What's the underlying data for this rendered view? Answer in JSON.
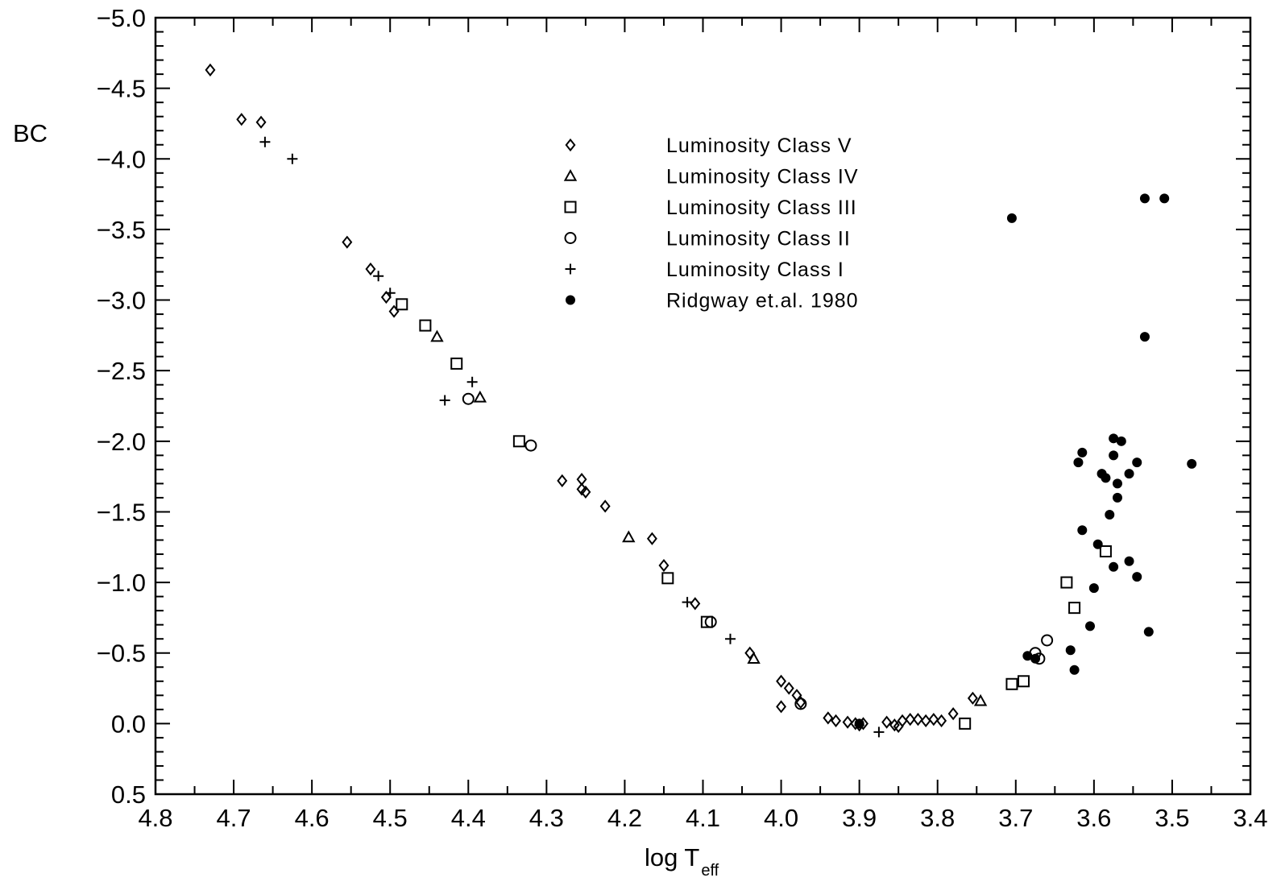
{
  "chart_data": {
    "type": "scatter",
    "title": "",
    "xlabel": "log T",
    "xlabel_subscript": "eff",
    "ylabel": "BC",
    "xlim": [
      4.8,
      3.4
    ],
    "ylim": [
      0.5,
      -5.0
    ],
    "x_ticks": [
      "4.8",
      "4.7",
      "4.6",
      "4.5",
      "4.4",
      "4.3",
      "4.2",
      "4.1",
      "4.0",
      "3.9",
      "3.8",
      "3.7",
      "3.6",
      "3.5",
      "3.4"
    ],
    "y_ticks": [
      "0.5",
      "0.0",
      "-0.5",
      "-1.0",
      "-1.5",
      "-2.0",
      "-2.5",
      "-3.0",
      "-3.5",
      "-4.0",
      "-4.5",
      "-5.0"
    ],
    "grid": false,
    "legend_position": "top-center",
    "series": [
      {
        "name": "Luminosity Class V",
        "marker": "diamond",
        "points": [
          [
            4.73,
            -4.63
          ],
          [
            4.69,
            -4.28
          ],
          [
            4.665,
            -4.26
          ],
          [
            4.555,
            -3.41
          ],
          [
            4.525,
            -3.22
          ],
          [
            4.505,
            -3.02
          ],
          [
            4.495,
            -2.92
          ],
          [
            4.28,
            -1.72
          ],
          [
            4.255,
            -1.73
          ],
          [
            4.255,
            -1.66
          ],
          [
            4.25,
            -1.64
          ],
          [
            4.225,
            -1.54
          ],
          [
            4.165,
            -1.31
          ],
          [
            4.15,
            -1.12
          ],
          [
            4.11,
            -0.85
          ],
          [
            4.04,
            -0.5
          ],
          [
            4.0,
            -0.3
          ],
          [
            4.0,
            -0.12
          ],
          [
            3.99,
            -0.25
          ],
          [
            3.98,
            -0.2
          ],
          [
            3.975,
            -0.15
          ],
          [
            3.94,
            -0.04
          ],
          [
            3.93,
            -0.02
          ],
          [
            3.915,
            -0.01
          ],
          [
            3.905,
            0.0
          ],
          [
            3.9,
            0.01
          ],
          [
            3.895,
            0.0
          ],
          [
            3.865,
            -0.01
          ],
          [
            3.855,
            0.01
          ],
          [
            3.85,
            0.02
          ],
          [
            3.845,
            -0.02
          ],
          [
            3.835,
            -0.03
          ],
          [
            3.825,
            -0.03
          ],
          [
            3.815,
            -0.02
          ],
          [
            3.805,
            -0.03
          ],
          [
            3.795,
            -0.02
          ],
          [
            3.78,
            -0.07
          ],
          [
            3.755,
            -0.18
          ]
        ]
      },
      {
        "name": "Luminosity Class IV",
        "marker": "triangle",
        "points": [
          [
            4.44,
            -2.74
          ],
          [
            4.385,
            -2.31
          ],
          [
            4.195,
            -1.32
          ],
          [
            4.035,
            -0.46
          ],
          [
            3.745,
            -0.16
          ]
        ]
      },
      {
        "name": "Luminosity Class III",
        "marker": "square",
        "points": [
          [
            4.485,
            -2.97
          ],
          [
            4.455,
            -2.82
          ],
          [
            4.415,
            -2.55
          ],
          [
            4.335,
            -2.0
          ],
          [
            4.145,
            -1.03
          ],
          [
            4.095,
            -0.72
          ],
          [
            3.765,
            0.0
          ],
          [
            3.705,
            -0.28
          ],
          [
            3.69,
            -0.3
          ],
          [
            3.635,
            -1.0
          ],
          [
            3.625,
            -0.82
          ],
          [
            3.585,
            -1.22
          ]
        ]
      },
      {
        "name": "Luminosity Class II",
        "marker": "circle",
        "points": [
          [
            4.4,
            -2.3
          ],
          [
            4.32,
            -1.97
          ],
          [
            4.09,
            -0.72
          ],
          [
            3.975,
            -0.14
          ],
          [
            3.675,
            -0.5
          ],
          [
            3.67,
            -0.46
          ],
          [
            3.66,
            -0.59
          ]
        ]
      },
      {
        "name": "Luminosity Class I",
        "marker": "plus",
        "points": [
          [
            4.66,
            -4.12
          ],
          [
            4.625,
            -4.0
          ],
          [
            4.515,
            -3.17
          ],
          [
            4.5,
            -3.05
          ],
          [
            4.43,
            -2.29
          ],
          [
            4.395,
            -2.42
          ],
          [
            4.12,
            -0.86
          ],
          [
            4.065,
            -0.6
          ],
          [
            3.875,
            0.06
          ]
        ]
      },
      {
        "name": "Ridgway et.al. 1980",
        "marker": "filled-circle",
        "points": [
          [
            3.9,
            0.0
          ],
          [
            3.705,
            -3.58
          ],
          [
            3.535,
            -3.72
          ],
          [
            3.51,
            -3.72
          ],
          [
            3.535,
            -2.74
          ],
          [
            3.475,
            -1.84
          ],
          [
            3.615,
            -1.92
          ],
          [
            3.62,
            -1.85
          ],
          [
            3.575,
            -2.02
          ],
          [
            3.565,
            -2.0
          ],
          [
            3.575,
            -1.9
          ],
          [
            3.59,
            -1.77
          ],
          [
            3.585,
            -1.74
          ],
          [
            3.57,
            -1.7
          ],
          [
            3.555,
            -1.77
          ],
          [
            3.545,
            -1.85
          ],
          [
            3.57,
            -1.6
          ],
          [
            3.58,
            -1.48
          ],
          [
            3.615,
            -1.37
          ],
          [
            3.595,
            -1.27
          ],
          [
            3.555,
            -1.15
          ],
          [
            3.575,
            -1.11
          ],
          [
            3.545,
            -1.04
          ],
          [
            3.6,
            -0.96
          ],
          [
            3.605,
            -0.69
          ],
          [
            3.53,
            -0.65
          ],
          [
            3.63,
            -0.52
          ],
          [
            3.625,
            -0.38
          ],
          [
            3.685,
            -0.48
          ],
          [
            3.675,
            -0.46
          ]
        ]
      }
    ]
  }
}
